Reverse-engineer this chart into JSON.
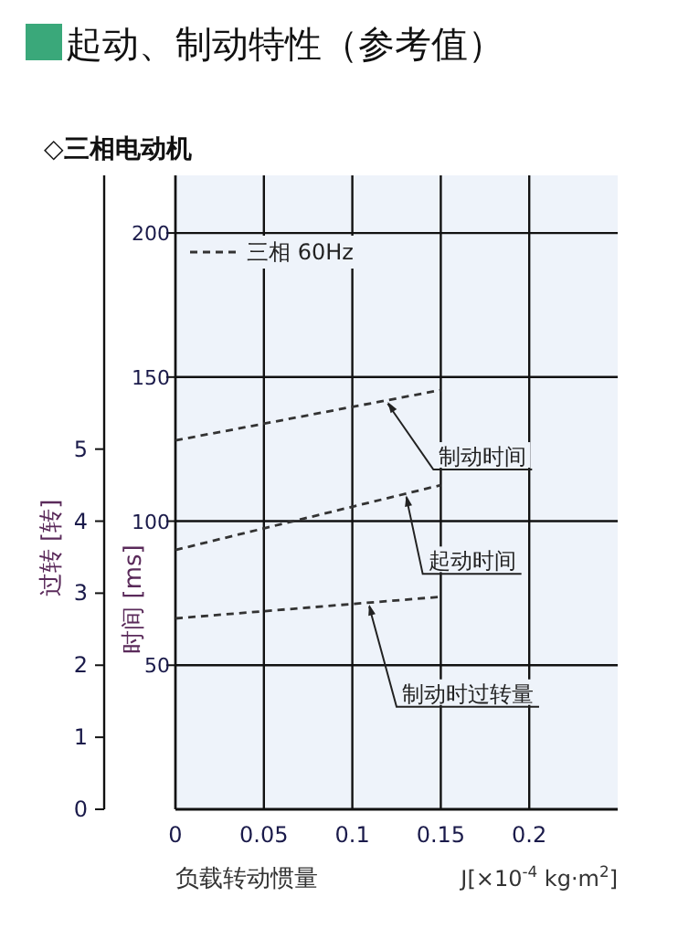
{
  "chart_data": {
    "type": "line",
    "title": "起动、制动特性（参考值）",
    "subtitle": "◇三相电动机",
    "xlabel": "负载转动惯量",
    "ylabel": "时间 [ms]",
    "y2label": "过转 [转]",
    "legend_title": "三相 60Hz",
    "annotations": [
      "J[×10$^{-4}$ kg·m$^{2}$]"
    ],
    "xlim": [
      0,
      0.25
    ],
    "xticks": [
      0,
      0.05,
      0.1,
      0.15,
      0.2
    ],
    "ylim": [
      0,
      220
    ],
    "yticks": [
      50,
      100,
      150,
      200
    ],
    "y2lim": [
      0,
      8.8
    ],
    "y2ticks": [
      0,
      1,
      2,
      3,
      4,
      5
    ],
    "grid": true,
    "line_style": "dashed",
    "marker": "none",
    "x": [
      0,
      0.15
    ],
    "series": [
      {
        "name": "制动时间",
        "color": "#333333",
        "values": [
          128,
          145.5
        ]
      },
      {
        "name": "起动时间",
        "color": "#333333",
        "values": [
          90,
          112.5
        ]
      },
      {
        "name": "制动时过转量",
        "color": "#333333",
        "axis": "y2",
        "values": [
          2.65,
          2.95
        ]
      }
    ]
  }
}
